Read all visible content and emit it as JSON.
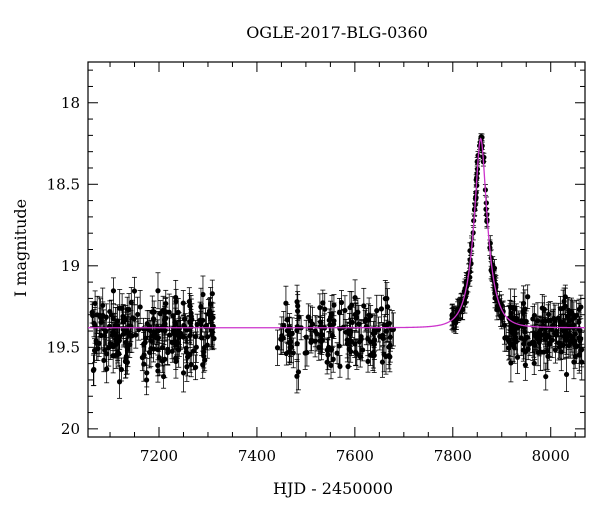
{
  "chart_data": {
    "type": "scatter",
    "title": "OGLE-2017-BLG-0360",
    "xlabel": "HJD - 2450000",
    "ylabel": "I magnitude",
    "xlim": [
      7055,
      8070
    ],
    "ylim": [
      20.05,
      17.75
    ],
    "y_inverted": true,
    "x_ticks": [
      7200,
      7400,
      7600,
      7800,
      8000
    ],
    "y_ticks": [
      18,
      18.5,
      19,
      19.5,
      20
    ],
    "x_ticklabels": [
      "7200",
      "7400",
      "7600",
      "7800",
      "8000"
    ],
    "y_ticklabels": [
      "18",
      "18.5",
      "19",
      "19.5",
      "20"
    ],
    "grid": false,
    "series": [
      {
        "style": "points-with-errorbars",
        "color": "#000000",
        "segments": [
          {
            "x_range": [
              7063,
              7315
            ],
            "baseline_mag": 19.42,
            "scatter": 0.11,
            "error": 0.09,
            "count": 230
          },
          {
            "x_range": [
              7440,
              7680
            ],
            "baseline_mag": 19.41,
            "scatter": 0.1,
            "error": 0.09,
            "count": 150
          },
          {
            "x_range": [
              7798,
              7905
            ],
            "event": true,
            "count": 120
          },
          {
            "x_range": [
              7905,
              8065
            ],
            "baseline_mag": 19.4,
            "scatter": 0.1,
            "error": 0.09,
            "count": 170
          }
        ],
        "peak": {
          "x": 7855,
          "y": 18.17
        }
      },
      {
        "style": "line",
        "color": "#cc33cc",
        "model": {
          "baseline_mag": 19.38,
          "t0": 7857,
          "peak_mag": 18.22,
          "tE": 27
        }
      }
    ]
  }
}
